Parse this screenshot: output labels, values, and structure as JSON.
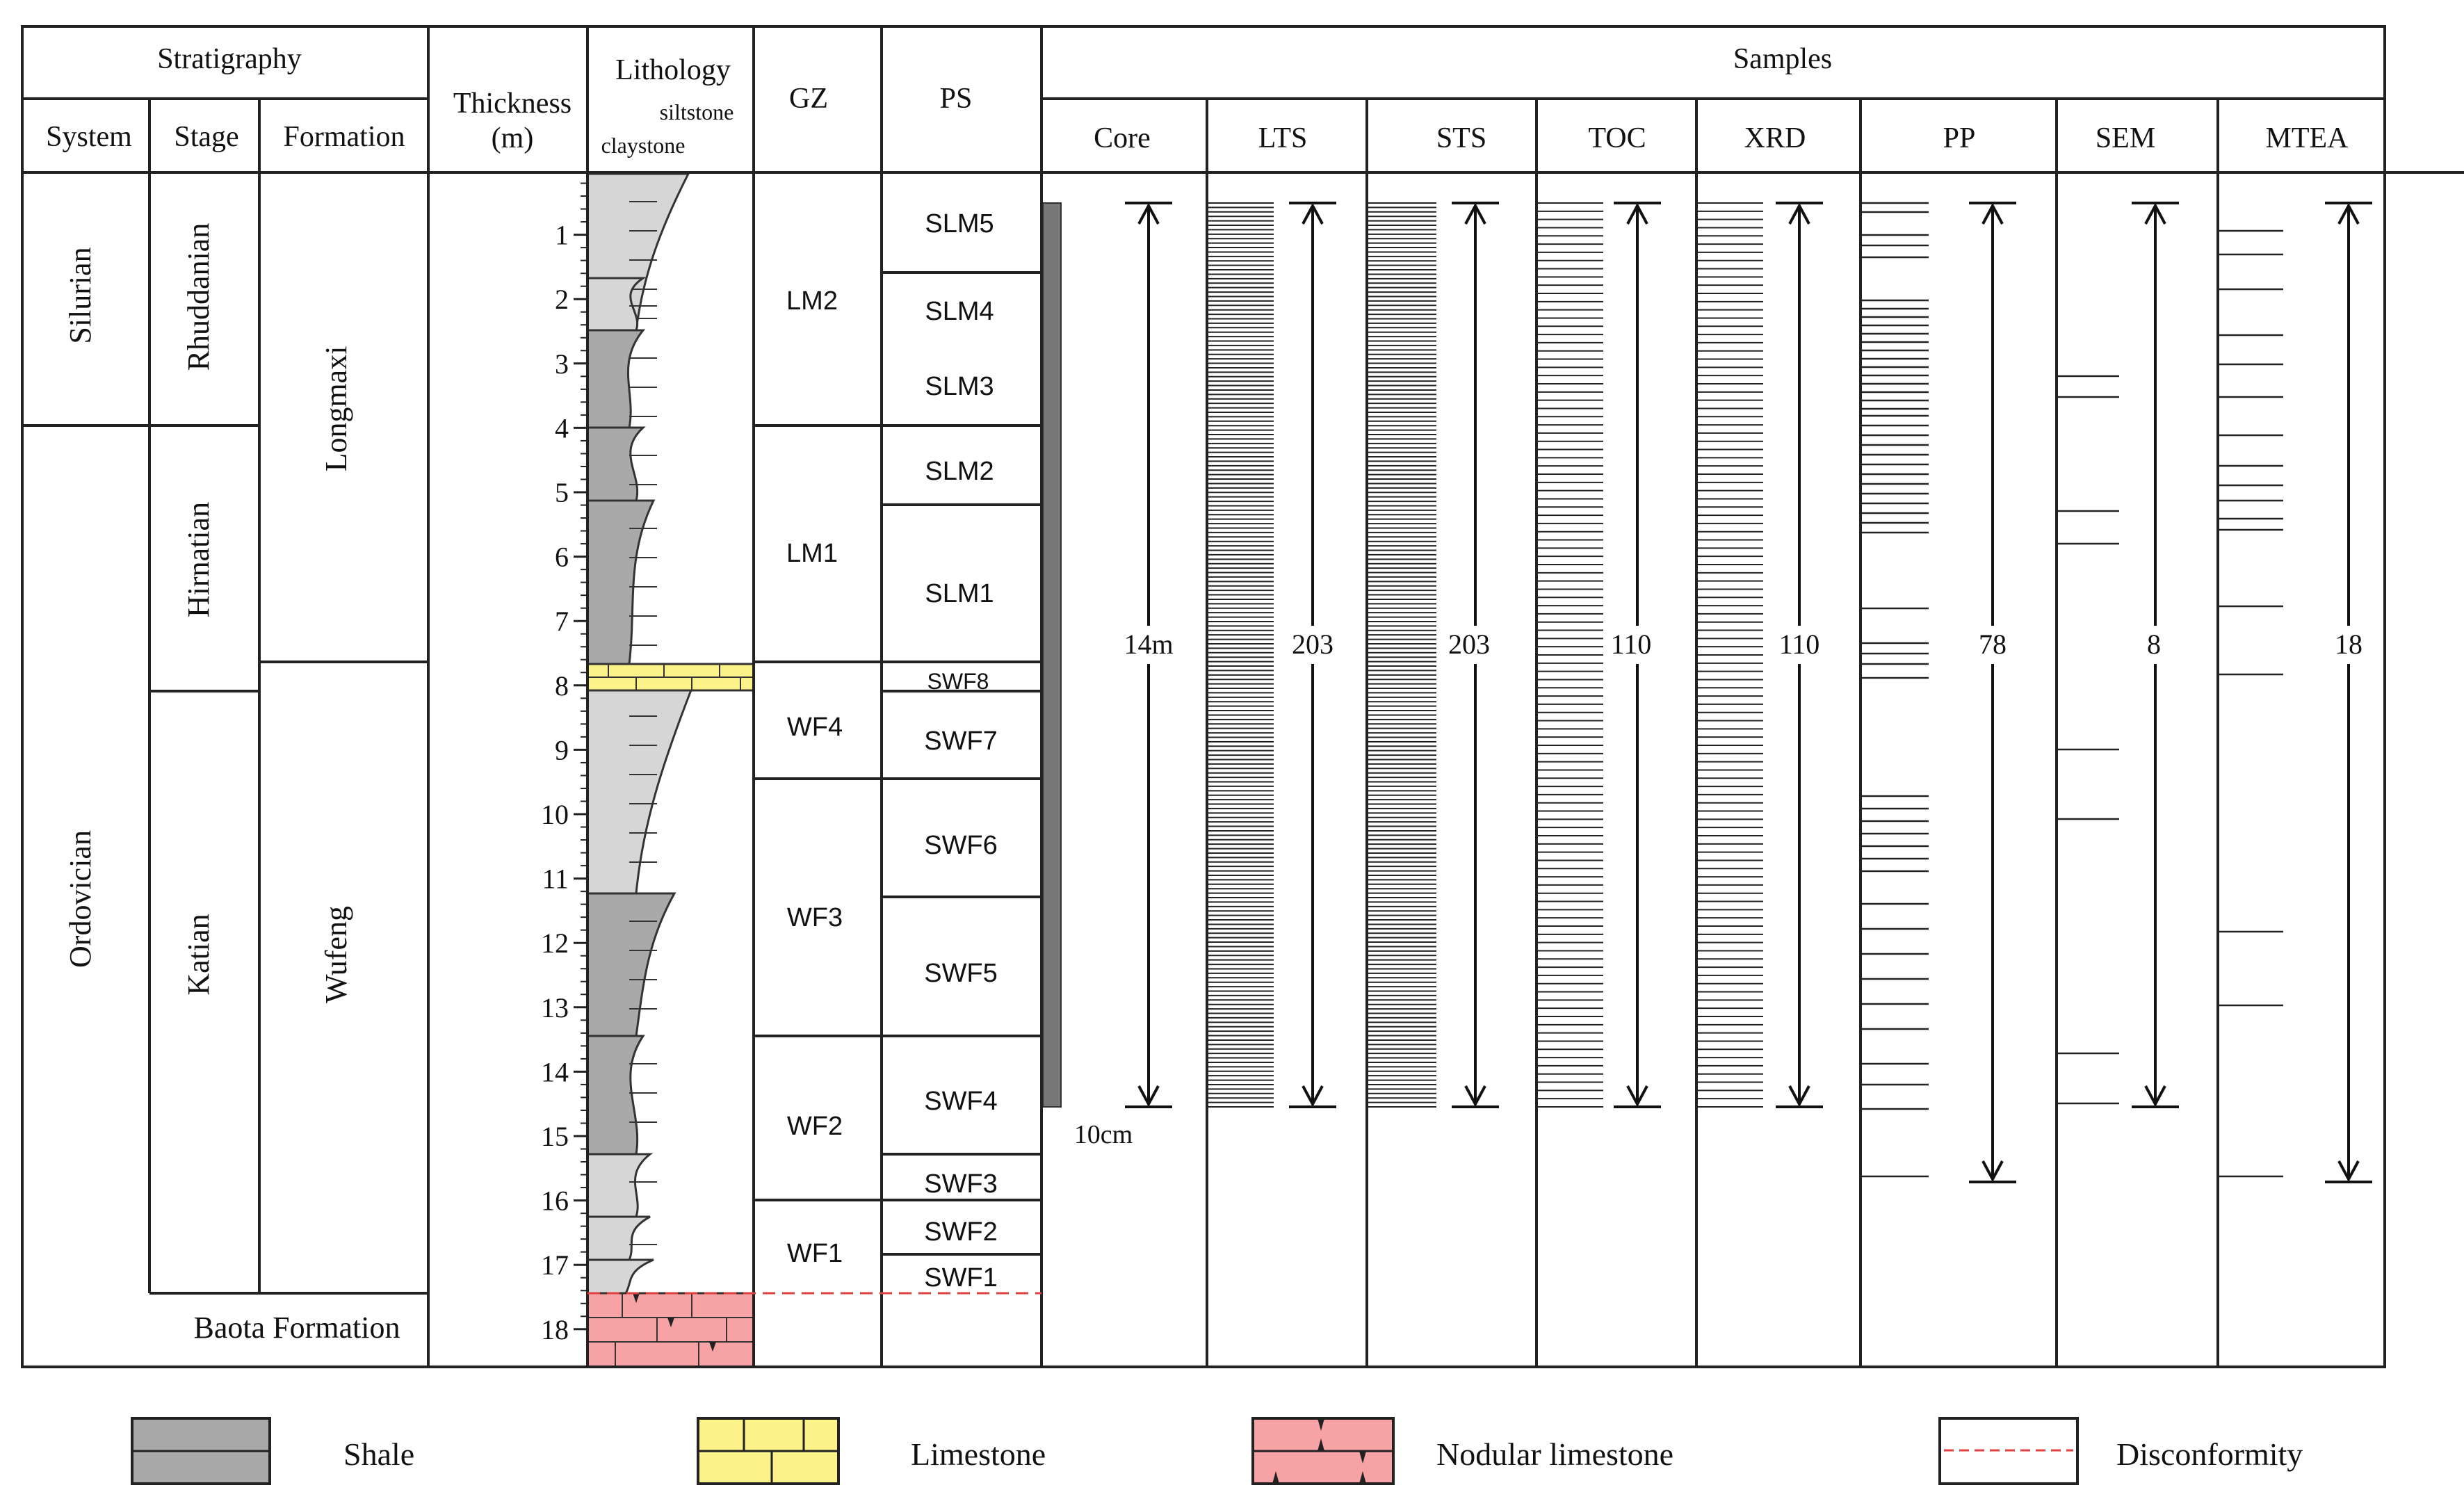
{
  "header": {
    "stratigraphy": "Stratigraphy",
    "system": "System",
    "stage": "Stage",
    "formation": "Formation",
    "thickness": "Thickness",
    "thickness_unit": "(m)",
    "lithology": "Lithology",
    "siltstone": "siltstone",
    "claystone": "claystone",
    "gz": "GZ",
    "ps": "PS",
    "samples": "Samples"
  },
  "systems": [
    "Silurian",
    "Ordovician"
  ],
  "stages": [
    "Rhuddanian",
    "Hirnatian",
    "Katian"
  ],
  "formations": [
    "Longmaxi",
    "Wufeng",
    "Baota Formation"
  ],
  "depth_ticks": [
    "1",
    "2",
    "3",
    "4",
    "5",
    "6",
    "7",
    "8",
    "9",
    "10",
    "11",
    "12",
    "13",
    "14",
    "15",
    "16",
    "17",
    "18"
  ],
  "gz_units": [
    "LM2",
    "LM1",
    "WF4",
    "WF3",
    "WF2",
    "WF1"
  ],
  "ps_units": [
    "SLM5",
    "SLM4",
    "SLM3",
    "SLM2",
    "SLM1",
    "SWF8",
    "SWF7",
    "SWF6",
    "SWF5",
    "SWF4",
    "SWF3",
    "SWF2",
    "SWF1"
  ],
  "sample_columns": [
    {
      "name": "Core",
      "count": "14m",
      "extra": "10cm"
    },
    {
      "name": "LTS",
      "count": "203"
    },
    {
      "name": "STS",
      "count": "203"
    },
    {
      "name": "TOC",
      "count": "110"
    },
    {
      "name": "XRD",
      "count": "110"
    },
    {
      "name": "PP",
      "count": "78"
    },
    {
      "name": "SEM",
      "count": "8"
    },
    {
      "name": "MTEA",
      "count": "18"
    }
  ],
  "legend": {
    "shale": "Shale",
    "limestone": "Limestone",
    "nodular_limestone": "Nodular  limestone",
    "disconformity": "Disconformity"
  },
  "colors": {
    "shale": "#a9a9a9",
    "shale_light": "#d6d6d6",
    "limestone": "#fbf28a",
    "nodular": "#f7a3a6",
    "disconformity": "#e04040",
    "core_bar": "#777777"
  }
}
